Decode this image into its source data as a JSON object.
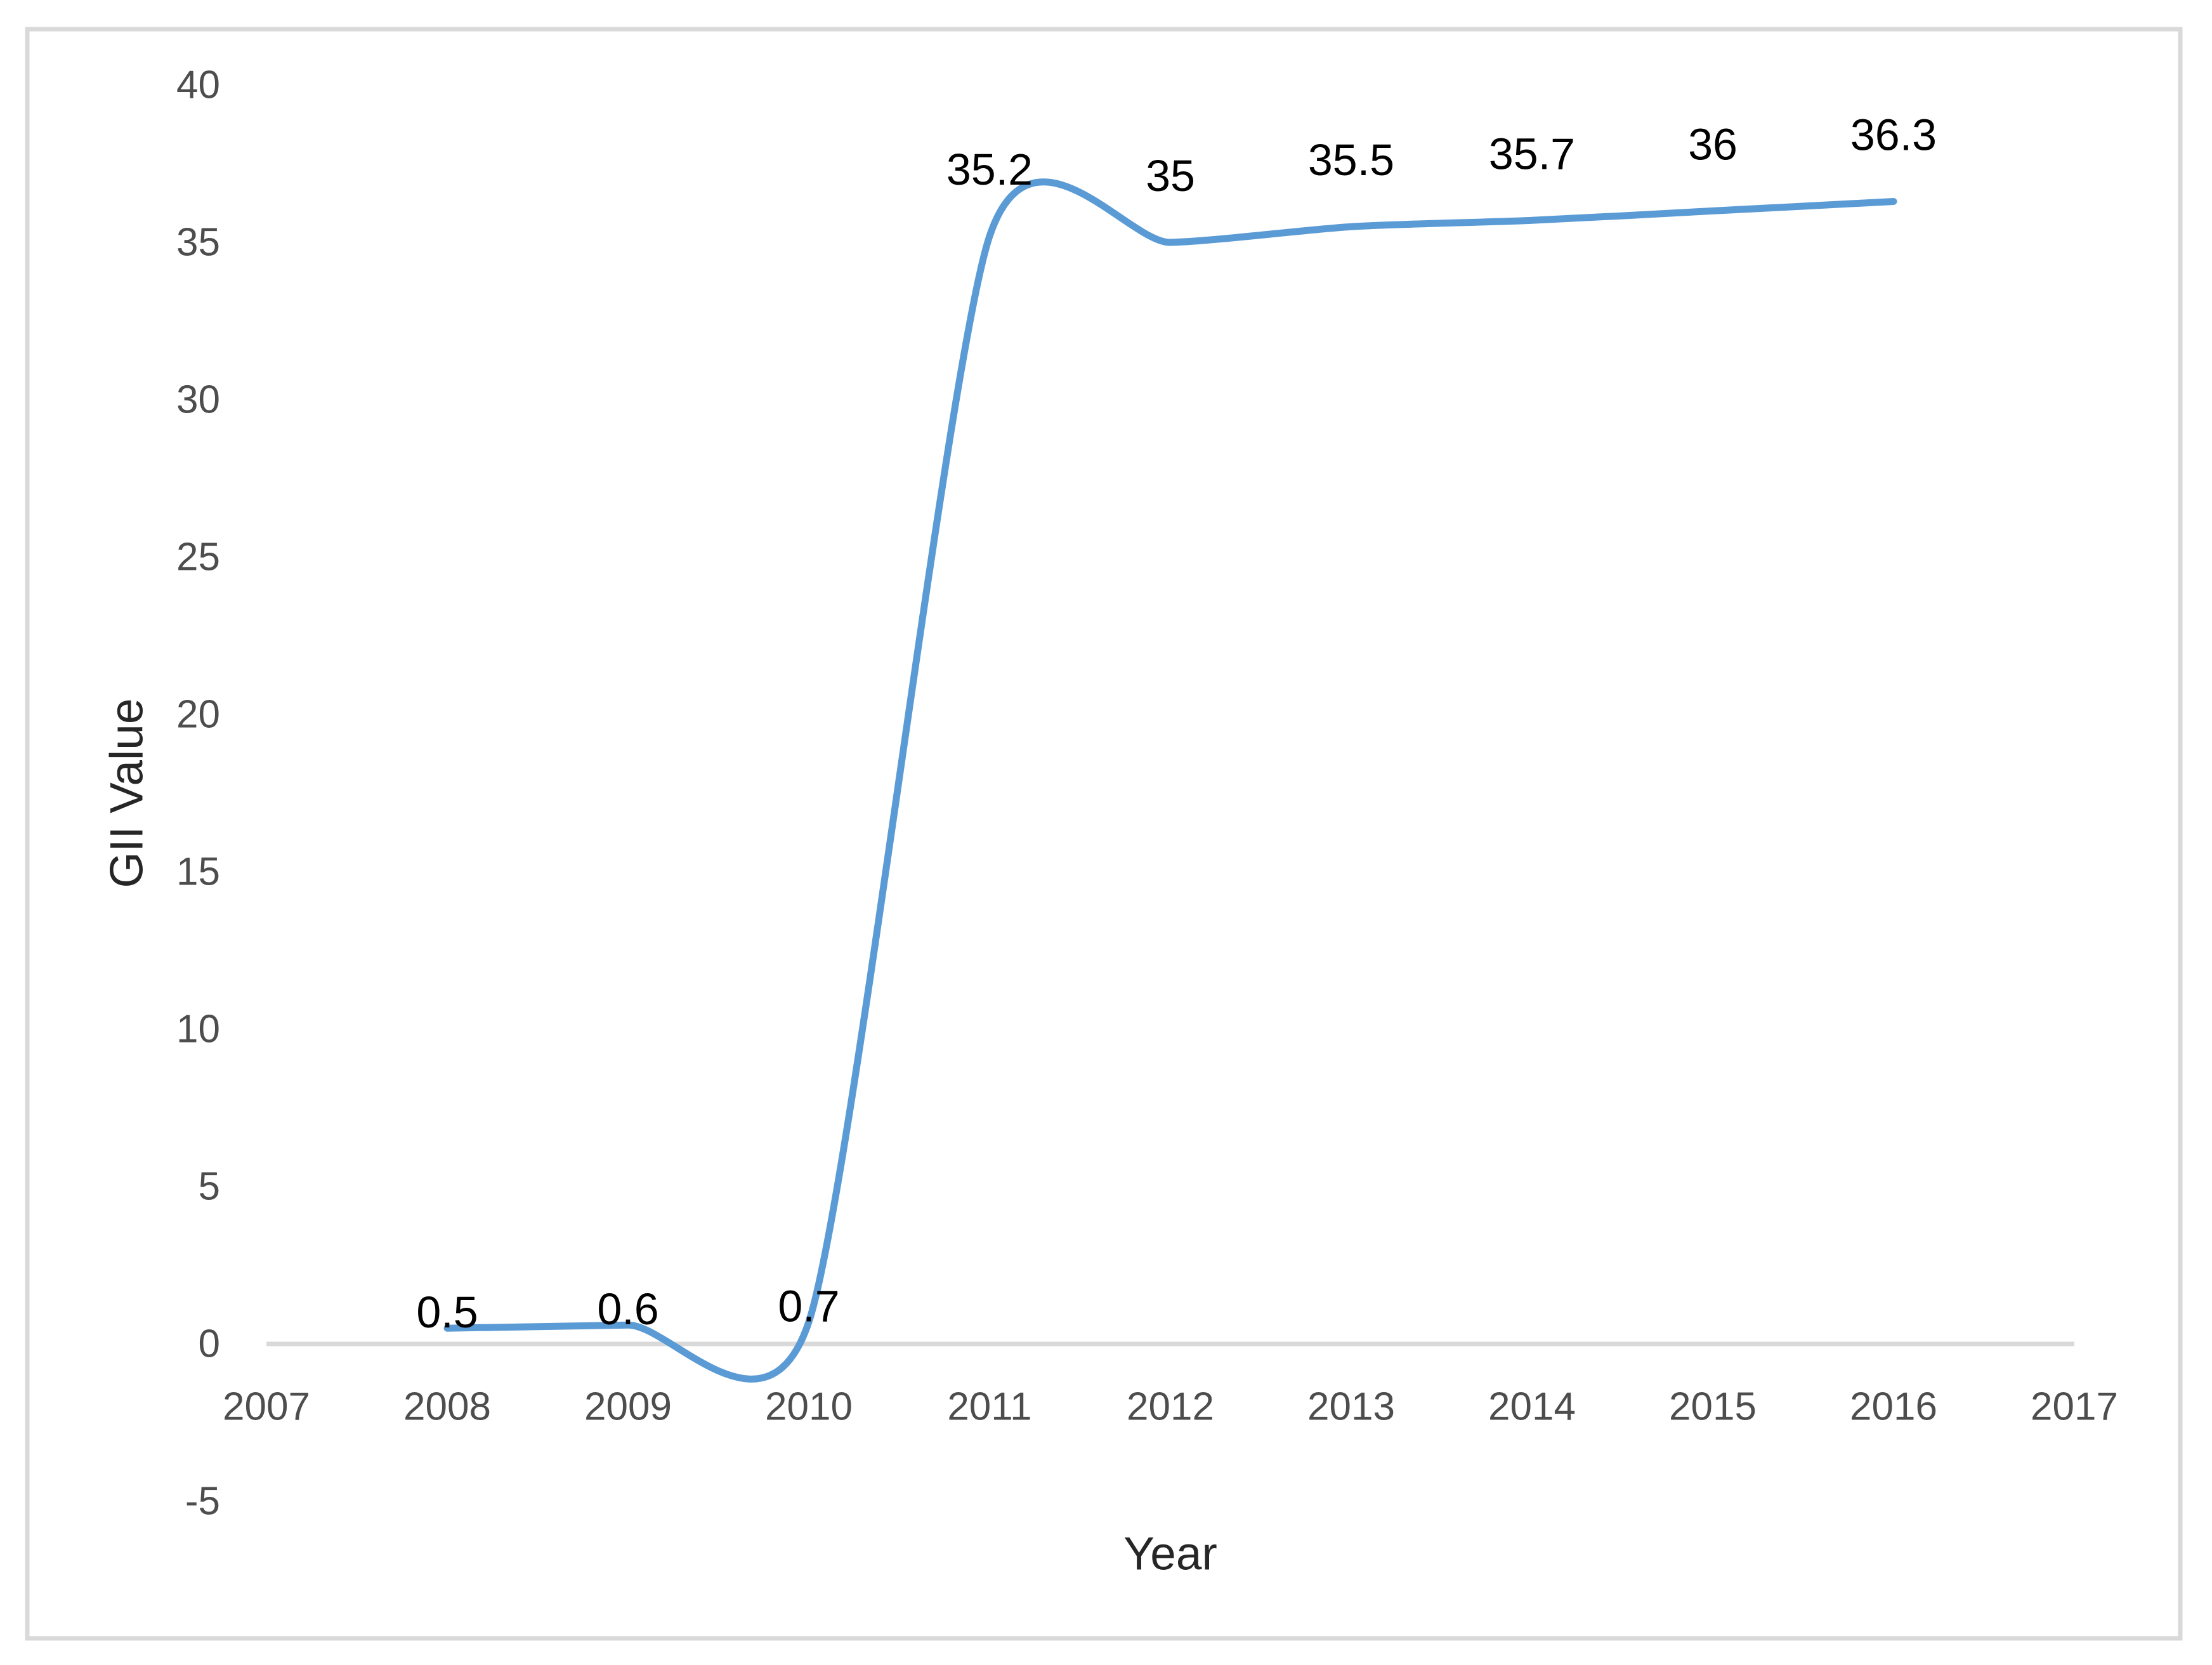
{
  "chart_data": {
    "type": "line",
    "title": "",
    "xlabel": "Year",
    "ylabel": "GII Value",
    "x_categories": [
      "2007",
      "2008",
      "2009",
      "2010",
      "2011",
      "2012",
      "2013",
      "2014",
      "2015",
      "2016",
      "2017"
    ],
    "series": [
      {
        "name": "GII Value",
        "x": [
          2008,
          2009,
          2010,
          2011,
          2012,
          2013,
          2014,
          2015,
          2016
        ],
        "values": [
          0.5,
          0.6,
          0.7,
          35.2,
          35,
          35.5,
          35.7,
          36,
          36.3
        ],
        "data_labels": [
          "0.5",
          "0.6",
          "0.7",
          "35.2",
          "35",
          "35.5",
          "35.7",
          "36",
          "36.3"
        ]
      }
    ],
    "y_ticks": [
      40,
      35,
      30,
      25,
      20,
      15,
      10,
      5,
      0,
      -5
    ],
    "ylim": [
      -5,
      40
    ],
    "x_axis_first_category": 2007,
    "smooth": true,
    "grid": "zero-line-only",
    "legend": "none",
    "marker": "none",
    "colors": {
      "line": "#5B9BD5",
      "tick_text": "#4d4d4d",
      "data_label_text": "#000000",
      "axis_title_text": "#262626",
      "zero_gridline": "#D9D9D9",
      "frame_border": "#D9D9D9",
      "background": "#ffffff"
    }
  }
}
